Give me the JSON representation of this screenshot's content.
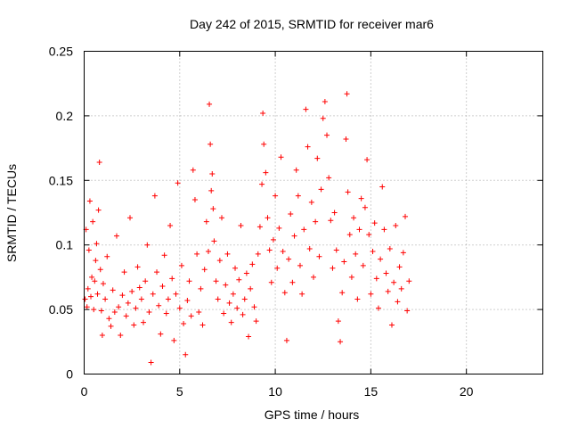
{
  "chart_data": {
    "type": "scatter",
    "title": "Day 242 of 2015, SRMTID for receiver mar6",
    "xlabel": "GPS time / hours",
    "ylabel": "SRMTID / TECUs",
    "xlim": [
      0,
      24
    ],
    "ylim": [
      0,
      0.25
    ],
    "x_ticks": [
      0,
      5,
      10,
      15,
      20
    ],
    "x_tick_labels": [
      "0",
      "5",
      "10",
      "15",
      "20"
    ],
    "y_ticks": [
      0,
      0.05,
      0.1,
      0.15,
      0.2,
      0.25
    ],
    "y_tick_labels": [
      "0",
      "0.05",
      "0.1",
      "0.15",
      "0.2",
      "0.25"
    ],
    "grid": true,
    "marker": "+",
    "series_color": "#ff0000",
    "series": [
      {
        "name": "SRMTID",
        "points": [
          [
            0.05,
            0.058
          ],
          [
            0.1,
            0.112
          ],
          [
            0.15,
            0.052
          ],
          [
            0.2,
            0.066
          ],
          [
            0.25,
            0.096
          ],
          [
            0.3,
            0.134
          ],
          [
            0.35,
            0.06
          ],
          [
            0.4,
            0.075
          ],
          [
            0.45,
            0.118
          ],
          [
            0.5,
            0.05
          ],
          [
            0.55,
            0.072
          ],
          [
            0.6,
            0.088
          ],
          [
            0.65,
            0.101
          ],
          [
            0.7,
            0.062
          ],
          [
            0.75,
            0.127
          ],
          [
            0.8,
            0.164
          ],
          [
            0.85,
            0.081
          ],
          [
            0.9,
            0.049
          ],
          [
            0.95,
            0.03
          ],
          [
            1.0,
            0.07
          ],
          [
            1.1,
            0.058
          ],
          [
            1.2,
            0.091
          ],
          [
            1.3,
            0.043
          ],
          [
            1.4,
            0.037
          ],
          [
            1.5,
            0.065
          ],
          [
            1.6,
            0.048
          ],
          [
            1.7,
            0.107
          ],
          [
            1.8,
            0.052
          ],
          [
            1.9,
            0.03
          ],
          [
            2.0,
            0.061
          ],
          [
            2.1,
            0.079
          ],
          [
            2.2,
            0.045
          ],
          [
            2.3,
            0.055
          ],
          [
            2.4,
            0.121
          ],
          [
            2.5,
            0.064
          ],
          [
            2.6,
            0.038
          ],
          [
            2.7,
            0.051
          ],
          [
            2.8,
            0.083
          ],
          [
            2.9,
            0.067
          ],
          [
            3.0,
            0.058
          ],
          [
            3.1,
            0.04
          ],
          [
            3.2,
            0.072
          ],
          [
            3.3,
            0.1
          ],
          [
            3.4,
            0.048
          ],
          [
            3.5,
            0.009
          ],
          [
            3.6,
            0.062
          ],
          [
            3.7,
            0.138
          ],
          [
            3.8,
            0.079
          ],
          [
            3.9,
            0.053
          ],
          [
            4.0,
            0.031
          ],
          [
            4.1,
            0.068
          ],
          [
            4.2,
            0.092
          ],
          [
            4.3,
            0.047
          ],
          [
            4.4,
            0.058
          ],
          [
            4.5,
            0.115
          ],
          [
            4.6,
            0.074
          ],
          [
            4.7,
            0.026
          ],
          [
            4.8,
            0.062
          ],
          [
            4.9,
            0.148
          ],
          [
            5.0,
            0.051
          ],
          [
            5.1,
            0.084
          ],
          [
            5.2,
            0.039
          ],
          [
            5.3,
            0.015
          ],
          [
            5.4,
            0.057
          ],
          [
            5.5,
            0.072
          ],
          [
            5.6,
            0.045
          ],
          [
            5.7,
            0.158
          ],
          [
            5.8,
            0.135
          ],
          [
            5.9,
            0.093
          ],
          [
            6.0,
            0.048
          ],
          [
            6.1,
            0.066
          ],
          [
            6.2,
            0.038
          ],
          [
            6.3,
            0.081
          ],
          [
            6.4,
            0.118
          ],
          [
            6.5,
            0.095
          ],
          [
            6.55,
            0.209
          ],
          [
            6.6,
            0.178
          ],
          [
            6.65,
            0.142
          ],
          [
            6.7,
            0.155
          ],
          [
            6.75,
            0.128
          ],
          [
            6.8,
            0.103
          ],
          [
            6.9,
            0.072
          ],
          [
            7.0,
            0.058
          ],
          [
            7.1,
            0.088
          ],
          [
            7.2,
            0.121
          ],
          [
            7.3,
            0.047
          ],
          [
            7.4,
            0.069
          ],
          [
            7.5,
            0.093
          ],
          [
            7.6,
            0.055
          ],
          [
            7.7,
            0.04
          ],
          [
            7.8,
            0.062
          ],
          [
            7.9,
            0.082
          ],
          [
            8.0,
            0.051
          ],
          [
            8.1,
            0.073
          ],
          [
            8.2,
            0.115
          ],
          [
            8.3,
            0.046
          ],
          [
            8.4,
            0.058
          ],
          [
            8.5,
            0.078
          ],
          [
            8.6,
            0.029
          ],
          [
            8.7,
            0.066
          ],
          [
            8.8,
            0.085
          ],
          [
            8.9,
            0.052
          ],
          [
            9.0,
            0.041
          ],
          [
            9.1,
            0.093
          ],
          [
            9.2,
            0.114
          ],
          [
            9.3,
            0.147
          ],
          [
            9.35,
            0.202
          ],
          [
            9.4,
            0.178
          ],
          [
            9.5,
            0.156
          ],
          [
            9.6,
            0.121
          ],
          [
            9.7,
            0.096
          ],
          [
            9.8,
            0.071
          ],
          [
            9.9,
            0.104
          ],
          [
            10.0,
            0.138
          ],
          [
            10.1,
            0.082
          ],
          [
            10.2,
            0.113
          ],
          [
            10.3,
            0.168
          ],
          [
            10.4,
            0.095
          ],
          [
            10.5,
            0.063
          ],
          [
            10.6,
            0.026
          ],
          [
            10.7,
            0.089
          ],
          [
            10.8,
            0.124
          ],
          [
            10.9,
            0.071
          ],
          [
            11.0,
            0.107
          ],
          [
            11.1,
            0.158
          ],
          [
            11.2,
            0.138
          ],
          [
            11.3,
            0.084
          ],
          [
            11.4,
            0.062
          ],
          [
            11.5,
            0.112
          ],
          [
            11.6,
            0.205
          ],
          [
            11.7,
            0.176
          ],
          [
            11.8,
            0.097
          ],
          [
            11.9,
            0.133
          ],
          [
            12.0,
            0.075
          ],
          [
            12.1,
            0.118
          ],
          [
            12.2,
            0.167
          ],
          [
            12.3,
            0.091
          ],
          [
            12.4,
            0.143
          ],
          [
            12.5,
            0.198
          ],
          [
            12.6,
            0.211
          ],
          [
            12.7,
            0.185
          ],
          [
            12.8,
            0.152
          ],
          [
            12.9,
            0.119
          ],
          [
            13.0,
            0.082
          ],
          [
            13.1,
            0.125
          ],
          [
            13.2,
            0.096
          ],
          [
            13.3,
            0.041
          ],
          [
            13.4,
            0.025
          ],
          [
            13.5,
            0.063
          ],
          [
            13.6,
            0.087
          ],
          [
            13.7,
            0.182
          ],
          [
            13.75,
            0.217
          ],
          [
            13.8,
            0.141
          ],
          [
            13.9,
            0.108
          ],
          [
            14.0,
            0.075
          ],
          [
            14.1,
            0.121
          ],
          [
            14.2,
            0.093
          ],
          [
            14.3,
            0.058
          ],
          [
            14.4,
            0.112
          ],
          [
            14.5,
            0.136
          ],
          [
            14.6,
            0.084
          ],
          [
            14.7,
            0.129
          ],
          [
            14.8,
            0.166
          ],
          [
            14.9,
            0.108
          ],
          [
            15.0,
            0.062
          ],
          [
            15.1,
            0.095
          ],
          [
            15.2,
            0.117
          ],
          [
            15.3,
            0.074
          ],
          [
            15.4,
            0.051
          ],
          [
            15.5,
            0.089
          ],
          [
            15.6,
            0.145
          ],
          [
            15.7,
            0.112
          ],
          [
            15.8,
            0.078
          ],
          [
            15.9,
            0.064
          ],
          [
            16.0,
            0.097
          ],
          [
            16.1,
            0.038
          ],
          [
            16.2,
            0.071
          ],
          [
            16.3,
            0.115
          ],
          [
            16.4,
            0.056
          ],
          [
            16.5,
            0.083
          ],
          [
            16.6,
            0.066
          ],
          [
            16.7,
            0.094
          ],
          [
            16.8,
            0.122
          ],
          [
            16.9,
            0.049
          ],
          [
            17.0,
            0.072
          ]
        ]
      }
    ]
  }
}
